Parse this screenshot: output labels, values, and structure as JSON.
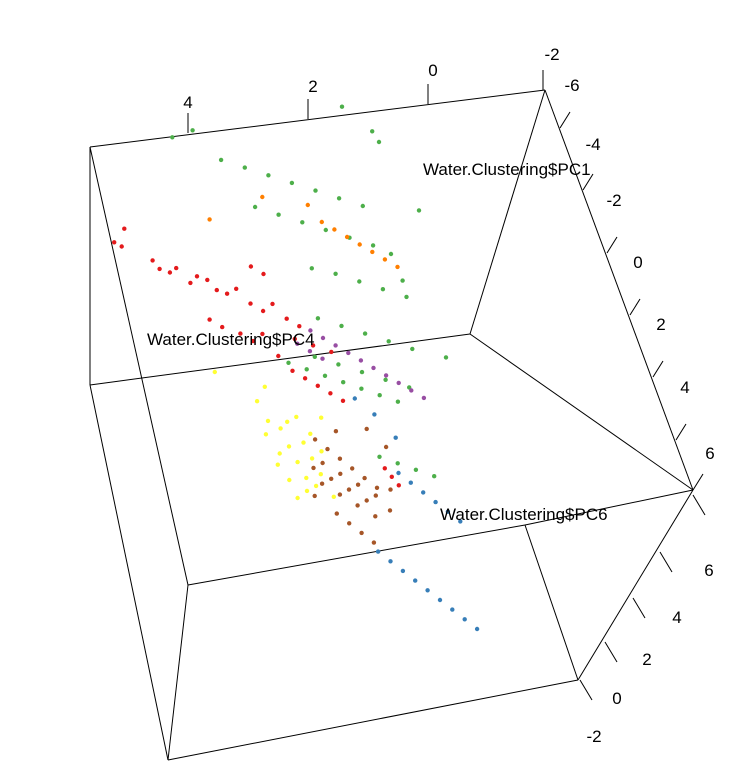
{
  "chart_data": {
    "type": "scatter",
    "title": "",
    "axes": {
      "pc1": {
        "label": "Water.Clustering$PC1",
        "ticks": [
          "-6",
          "-4",
          "-2",
          "0",
          "2",
          "4",
          "6"
        ]
      },
      "pc4": {
        "label": "Water.Clustering$PC4",
        "ticks": [
          "4",
          "2",
          "0",
          "-2"
        ]
      },
      "pc6": {
        "label": "Water.Clustering$PC6",
        "ticks": [
          "6",
          "4",
          "2",
          "0",
          "-2"
        ]
      }
    },
    "series": [
      {
        "color": "#e41a1c",
        "points": [
          [
            -3.6,
            2.2,
            4.0
          ],
          [
            -3.4,
            2.1,
            4.1
          ],
          [
            -3.2,
            2.3,
            4.2
          ],
          [
            -2.4,
            1.9,
            3.9
          ],
          [
            -2.2,
            1.8,
            3.8
          ],
          [
            -1.9,
            1.7,
            3.9
          ],
          [
            -1.6,
            1.8,
            3.7
          ],
          [
            -1.2,
            1.6,
            3.6
          ],
          [
            -0.9,
            1.7,
            3.5
          ],
          [
            -0.6,
            1.6,
            3.6
          ],
          [
            -0.3,
            1.5,
            3.4
          ],
          [
            0.0,
            1.4,
            3.5
          ],
          [
            0.4,
            1.5,
            3.3
          ],
          [
            0.8,
            1.3,
            3.2
          ],
          [
            1.2,
            1.2,
            3.1
          ],
          [
            1.6,
            1.3,
            3.0
          ],
          [
            2.0,
            1.1,
            2.9
          ],
          [
            2.4,
            1.0,
            2.8
          ],
          [
            -0.8,
            1.1,
            3.5
          ],
          [
            -0.4,
            1.0,
            3.4
          ],
          [
            0.2,
            0.9,
            3.3
          ],
          [
            0.6,
            0.8,
            3.2
          ],
          [
            1.0,
            0.9,
            3.1
          ],
          [
            1.4,
            0.6,
            3.0
          ],
          [
            1.8,
            0.4,
            2.9
          ],
          [
            2.2,
            0.3,
            2.8
          ],
          [
            2.6,
            0.2,
            2.7
          ],
          [
            3.0,
            0.1,
            2.6
          ],
          [
            3.4,
            0.0,
            2.5
          ],
          [
            1.2,
            1.9,
            2.8
          ],
          [
            1.6,
            1.8,
            2.7
          ],
          [
            2.2,
            0.9,
            2.6
          ],
          [
            2.8,
            0.8,
            2.5
          ],
          [
            3.4,
            0.7,
            2.4
          ],
          [
            5.2,
            0.0,
            -1.0
          ],
          [
            5.4,
            -0.1,
            -1.1
          ],
          [
            5.6,
            -0.2,
            -1.2
          ]
        ]
      },
      {
        "color": "#4daf4a",
        "points": [
          [
            -0.4,
            3.9,
            2.4
          ],
          [
            0.4,
            4.0,
            2.2
          ],
          [
            1.2,
            3.6,
            2.0
          ],
          [
            2.0,
            3.5,
            1.8
          ],
          [
            2.8,
            3.4,
            1.6
          ],
          [
            3.6,
            3.3,
            1.4
          ],
          [
            4.4,
            3.2,
            1.2
          ],
          [
            5.2,
            3.1,
            1.0
          ],
          [
            6.0,
            3.0,
            0.8
          ],
          [
            2.0,
            2.9,
            2.0
          ],
          [
            2.8,
            2.8,
            1.8
          ],
          [
            3.6,
            2.7,
            1.6
          ],
          [
            4.4,
            2.6,
            1.4
          ],
          [
            5.2,
            2.5,
            1.2
          ],
          [
            6.0,
            2.4,
            1.0
          ],
          [
            6.6,
            2.3,
            0.8
          ],
          [
            3.6,
            2.1,
            1.5
          ],
          [
            4.4,
            2.0,
            1.4
          ],
          [
            5.2,
            1.9,
            1.2
          ],
          [
            6.0,
            1.8,
            1.0
          ],
          [
            6.8,
            1.7,
            0.8
          ],
          [
            3.4,
            1.4,
            1.6
          ],
          [
            4.2,
            1.3,
            1.4
          ],
          [
            5.0,
            1.2,
            1.2
          ],
          [
            5.8,
            1.1,
            1.0
          ],
          [
            6.6,
            1.0,
            0.8
          ],
          [
            3.0,
            0.9,
            1.6
          ],
          [
            3.8,
            0.8,
            1.4
          ],
          [
            4.6,
            0.7,
            1.2
          ],
          [
            5.4,
            0.6,
            1.0
          ],
          [
            6.2,
            0.5,
            0.8
          ],
          [
            1.8,
            0.6,
            2.6
          ],
          [
            2.4,
            0.5,
            2.5
          ],
          [
            3.0,
            0.4,
            2.4
          ],
          [
            3.6,
            0.3,
            2.3
          ],
          [
            4.2,
            0.2,
            2.2
          ],
          [
            4.8,
            0.1,
            2.1
          ],
          [
            5.4,
            0.0,
            2.0
          ],
          [
            4.6,
            -0.4,
            1.0
          ],
          [
            5.2,
            -0.5,
            0.9
          ],
          [
            5.8,
            -0.6,
            0.8
          ],
          [
            6.4,
            -0.7,
            0.7
          ],
          [
            7.2,
            4.3,
            -0.4
          ],
          [
            7.4,
            4.2,
            -0.6
          ],
          [
            6.0,
            4.3,
            1.0
          ],
          [
            7.4,
            2.6,
            -1.6
          ],
          [
            8.6,
            3.6,
            -2.0
          ],
          [
            8.4,
            1.6,
            -2.0
          ]
        ]
      },
      {
        "color": "#ff7f00",
        "points": [
          [
            0.4,
            2.9,
            1.8
          ],
          [
            4.0,
            3.0,
            1.3
          ],
          [
            4.4,
            2.8,
            1.1
          ],
          [
            4.8,
            2.7,
            1.0
          ],
          [
            5.2,
            2.6,
            0.9
          ],
          [
            5.6,
            2.5,
            0.8
          ],
          [
            6.0,
            2.4,
            0.7
          ],
          [
            6.4,
            2.3,
            0.6
          ],
          [
            6.8,
            2.2,
            0.5
          ],
          [
            2.4,
            3.1,
            1.7
          ]
        ]
      },
      {
        "color": "#984ea3",
        "points": [
          [
            3.0,
            1.2,
            1.8
          ],
          [
            3.4,
            1.1,
            1.7
          ],
          [
            3.8,
            1.0,
            1.6
          ],
          [
            4.2,
            0.9,
            1.5
          ],
          [
            4.6,
            0.8,
            1.4
          ],
          [
            5.0,
            0.7,
            1.3
          ],
          [
            5.4,
            0.6,
            1.2
          ],
          [
            5.8,
            0.5,
            1.1
          ],
          [
            6.2,
            0.4,
            1.0
          ],
          [
            6.6,
            0.3,
            0.9
          ],
          [
            2.4,
            1.0,
            2.0
          ],
          [
            2.8,
            0.9,
            1.9
          ],
          [
            3.2,
            0.8,
            1.8
          ]
        ]
      },
      {
        "color": "#ffff33",
        "points": [
          [
            0.4,
            -0.4,
            3.6
          ],
          [
            0.2,
            -0.6,
            3.7
          ],
          [
            0.6,
            -0.8,
            3.4
          ],
          [
            0.8,
            -0.5,
            3.5
          ],
          [
            1.0,
            -0.7,
            3.3
          ],
          [
            0.4,
            -1.0,
            3.6
          ],
          [
            0.7,
            -1.2,
            3.5
          ],
          [
            1.2,
            -0.9,
            3.2
          ],
          [
            1.4,
            -1.1,
            3.1
          ],
          [
            1.6,
            -0.6,
            3.0
          ],
          [
            1.8,
            -0.8,
            2.9
          ],
          [
            2.0,
            -1.0,
            2.8
          ],
          [
            1.1,
            -0.4,
            3.4
          ],
          [
            1.5,
            -0.3,
            3.2
          ],
          [
            1.9,
            -0.5,
            3.0
          ],
          [
            2.2,
            -0.7,
            2.8
          ],
          [
            0.9,
            -1.4,
            3.3
          ],
          [
            1.3,
            -1.3,
            3.2
          ],
          [
            -1.2,
            0.2,
            4.2
          ],
          [
            0.1,
            -0.2,
            3.9
          ],
          [
            1.7,
            -1.2,
            3.0
          ],
          [
            2.3,
            -1.3,
            2.7
          ],
          [
            0.5,
            0.0,
            3.8
          ],
          [
            2.5,
            -0.2,
            2.6
          ]
        ]
      },
      {
        "color": "#a65628",
        "points": [
          [
            1.8,
            -0.9,
            2.8
          ],
          [
            2.0,
            -1.1,
            2.7
          ],
          [
            2.2,
            -0.8,
            2.6
          ],
          [
            2.4,
            -1.0,
            2.5
          ],
          [
            2.6,
            -1.2,
            2.4
          ],
          [
            2.8,
            -0.9,
            2.3
          ],
          [
            3.0,
            -1.1,
            2.2
          ],
          [
            3.2,
            -1.3,
            2.1
          ],
          [
            3.4,
            -1.0,
            2.0
          ],
          [
            3.6,
            -1.2,
            1.9
          ],
          [
            3.8,
            -1.4,
            1.8
          ],
          [
            4.0,
            -1.1,
            1.7
          ],
          [
            2.3,
            -1.5,
            2.6
          ],
          [
            2.7,
            -1.6,
            2.4
          ],
          [
            3.1,
            -1.7,
            2.2
          ],
          [
            3.5,
            -1.8,
            2.0
          ],
          [
            2.1,
            -0.5,
            2.7
          ],
          [
            2.5,
            -0.6,
            2.5
          ],
          [
            2.9,
            -0.7,
            2.3
          ],
          [
            3.3,
            -0.8,
            2.1
          ],
          [
            3.7,
            -0.9,
            1.9
          ],
          [
            4.1,
            -1.0,
            1.7
          ],
          [
            4.4,
            -1.3,
            1.6
          ],
          [
            4.6,
            -1.0,
            1.5
          ],
          [
            1.6,
            -1.3,
            2.9
          ],
          [
            4.8,
            -0.4,
            1.4
          ],
          [
            3.0,
            -0.3,
            2.2
          ],
          [
            4.2,
            -0.2,
            1.7
          ]
        ]
      },
      {
        "color": "#377eb8",
        "points": [
          [
            3.6,
            -1.9,
            1.9
          ],
          [
            4.0,
            -2.0,
            1.7
          ],
          [
            4.4,
            -2.1,
            1.5
          ],
          [
            4.8,
            -2.2,
            1.3
          ],
          [
            5.2,
            -2.3,
            1.1
          ],
          [
            5.6,
            -2.4,
            0.9
          ],
          [
            6.0,
            -2.5,
            0.7
          ],
          [
            6.4,
            -2.6,
            0.5
          ],
          [
            6.8,
            -2.7,
            0.3
          ],
          [
            5.0,
            -0.8,
            1.5
          ],
          [
            5.4,
            -0.9,
            1.3
          ],
          [
            5.8,
            -1.0,
            1.1
          ],
          [
            6.2,
            -1.1,
            0.9
          ],
          [
            6.6,
            -1.2,
            0.7
          ],
          [
            7.0,
            -1.3,
            0.5
          ],
          [
            4.0,
            0.2,
            1.8
          ],
          [
            4.6,
            0.0,
            1.6
          ],
          [
            5.2,
            -0.3,
            1.4
          ]
        ]
      }
    ],
    "grid": false,
    "legend": "none"
  }
}
